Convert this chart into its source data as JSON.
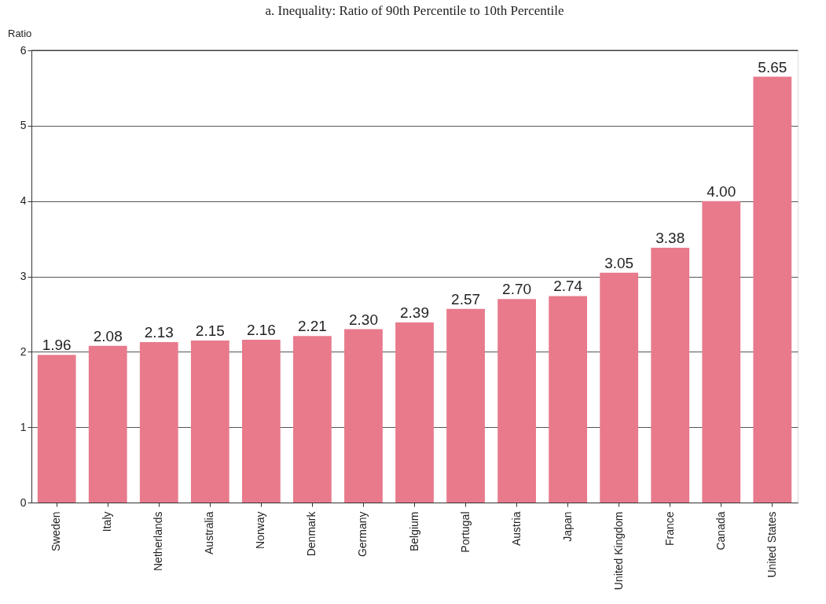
{
  "chart_data": {
    "type": "bar",
    "title": "a. Inequality: Ratio of 90th Percentile to 10th Percentile",
    "ylabel": "Ratio",
    "categories": [
      "Sweden",
      "Italy",
      "Netherlands",
      "Australia",
      "Norway",
      "Denmark",
      "Germany",
      "Belgium",
      "Portugal",
      "Austria",
      "Japan",
      "United Kingdom",
      "France",
      "Canada",
      "United States"
    ],
    "values": [
      1.96,
      2.08,
      2.13,
      2.15,
      2.16,
      2.21,
      2.3,
      2.39,
      2.57,
      2.7,
      2.74,
      3.05,
      3.38,
      4.0,
      5.65
    ],
    "value_labels": [
      "1.96",
      "2.08",
      "2.13",
      "2.15",
      "2.16",
      "2.21",
      "2.30",
      "2.39",
      "2.57",
      "2.70",
      "2.74",
      "3.05",
      "3.38",
      "4.00",
      "5.65"
    ],
    "color": "#e87a8c",
    "ylim": [
      0,
      6
    ],
    "yticks": [
      0,
      1,
      2,
      3,
      4,
      5,
      6
    ],
    "grid": "y"
  }
}
